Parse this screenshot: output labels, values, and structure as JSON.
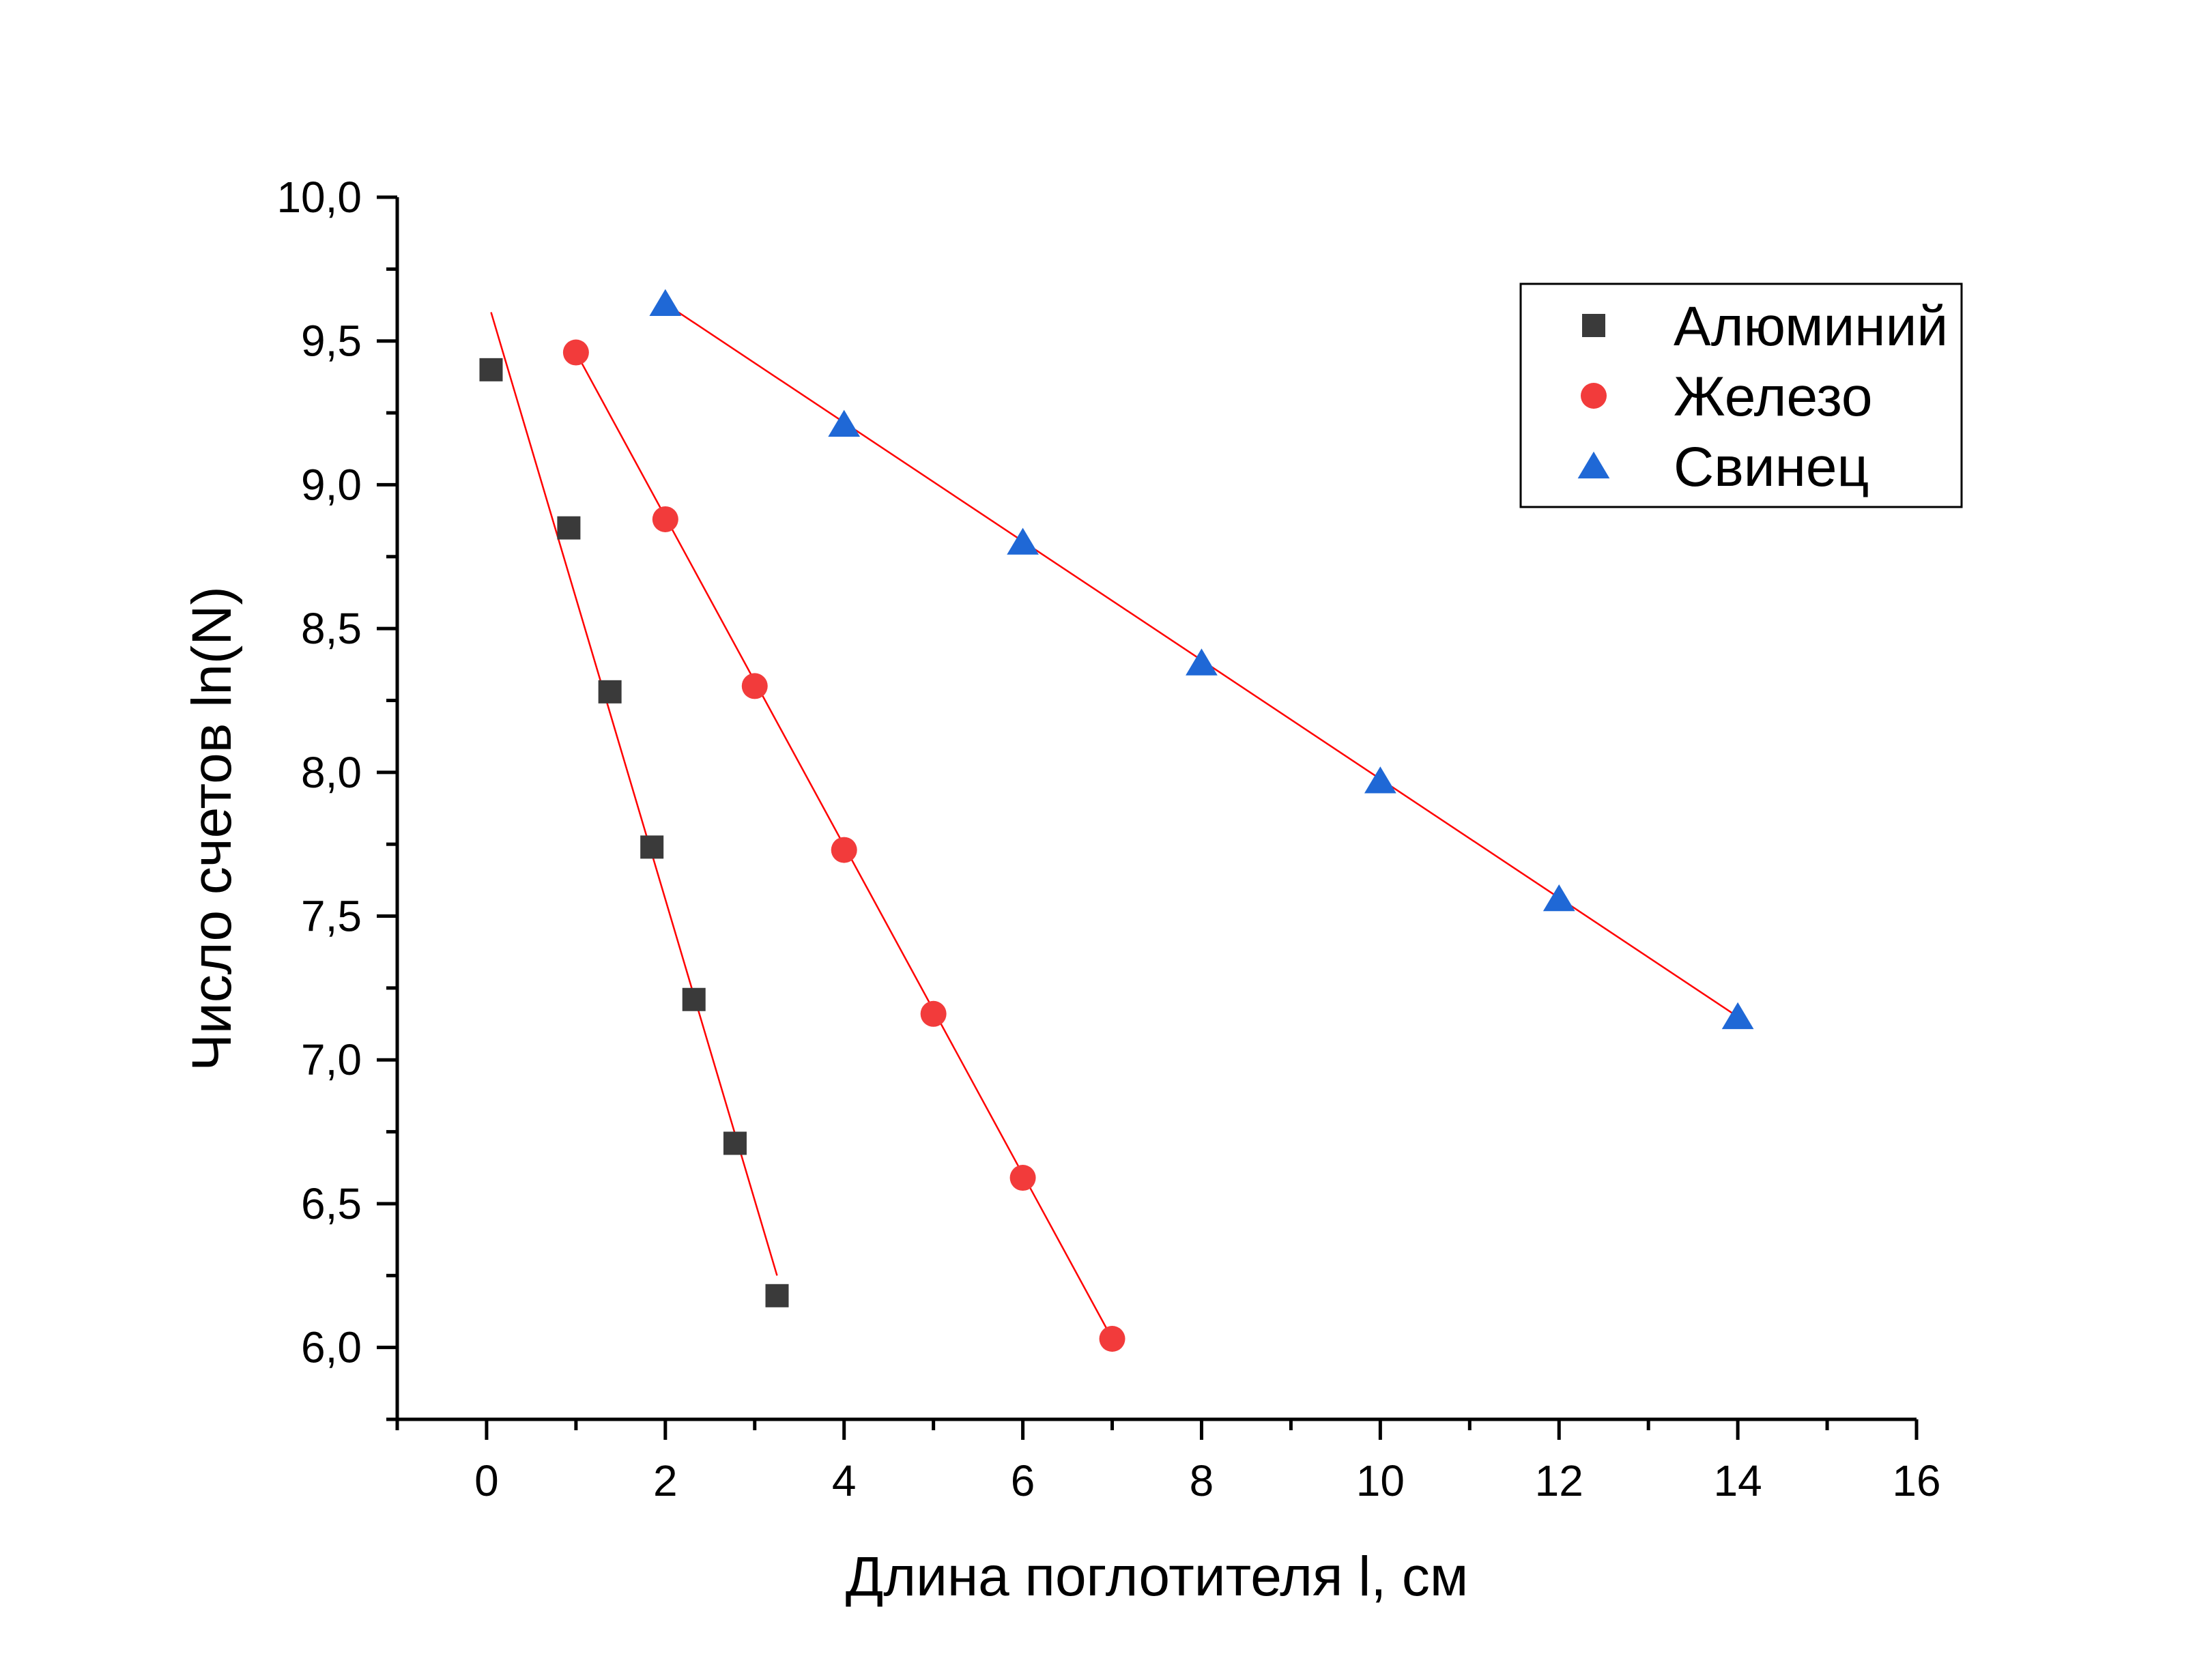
{
  "chart_data": {
    "type": "scatter",
    "title": "",
    "xlabel": "Длина поглотителя l, см",
    "ylabel": "Число счетов ln(N)",
    "xlim": [
      -1,
      16
    ],
    "ylim": [
      5.75,
      10.0
    ],
    "xticks": [
      0,
      2,
      4,
      6,
      8,
      10,
      12,
      14,
      16
    ],
    "xtick_labels": [
      "0",
      "2",
      "4",
      "6",
      "8",
      "10",
      "12",
      "14",
      "16"
    ],
    "yticks": [
      6.0,
      6.5,
      7.0,
      7.5,
      8.0,
      8.5,
      9.0,
      9.5,
      10.0
    ],
    "ytick_labels": [
      "6,0",
      "6,5",
      "7,0",
      "7,5",
      "8,0",
      "8,5",
      "9,0",
      "9,5",
      "10,0"
    ],
    "grid": false,
    "legend_position": "top-right",
    "series": [
      {
        "name": "Алюминий",
        "marker": "square",
        "color": "#3a3a3a",
        "x": [
          0.05,
          0.92,
          1.38,
          1.85,
          2.32,
          2.78,
          3.25
        ],
        "y": [
          9.4,
          8.85,
          8.28,
          7.74,
          7.21,
          6.71,
          6.18
        ],
        "fit": {
          "x": [
            0.05,
            3.25
          ],
          "y": [
            9.6,
            6.25
          ]
        }
      },
      {
        "name": "Железо",
        "marker": "circle",
        "color": "#f23b3b",
        "x": [
          1.0,
          2.0,
          3.0,
          4.0,
          5.0,
          6.0,
          7.0
        ],
        "y": [
          9.46,
          8.88,
          8.3,
          7.73,
          7.16,
          6.59,
          6.03
        ],
        "fit": {
          "x": [
            1.0,
            7.0
          ],
          "y": [
            9.46,
            6.03
          ]
        }
      },
      {
        "name": "Свинец",
        "marker": "triangle",
        "color": "#1f68d6",
        "x": [
          2.0,
          4.0,
          6.0,
          8.0,
          10.0,
          12.0,
          14.0
        ],
        "y": [
          9.63,
          9.21,
          8.8,
          8.38,
          7.97,
          7.56,
          7.15
        ],
        "fit": {
          "x": [
            2.0,
            14.0
          ],
          "y": [
            9.63,
            7.15
          ]
        }
      }
    ],
    "fit_line_color": "#ff0000"
  }
}
